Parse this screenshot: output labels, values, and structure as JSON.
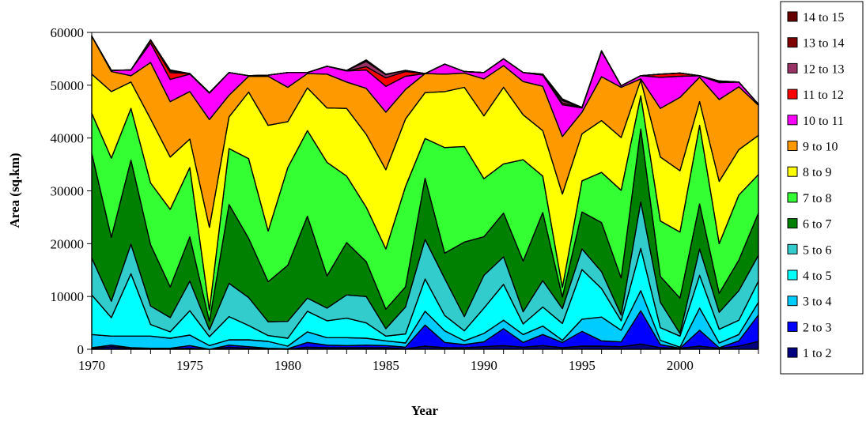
{
  "chart_data": {
    "type": "area",
    "stacked": true,
    "xlabel": "Year",
    "ylabel": "Area (sq.km)",
    "xlim": [
      1970,
      2004
    ],
    "ylim": [
      0,
      60000
    ],
    "x_ticks": [
      1970,
      1975,
      1980,
      1985,
      1990,
      1995,
      2000
    ],
    "y_ticks": [
      0,
      10000,
      20000,
      30000,
      40000,
      50000,
      60000
    ],
    "legend_position": "right",
    "grid": false,
    "years": [
      1970,
      1971,
      1972,
      1973,
      1974,
      1975,
      1976,
      1977,
      1978,
      1979,
      1980,
      1981,
      1982,
      1983,
      1984,
      1985,
      1986,
      1987,
      1988,
      1989,
      1990,
      1991,
      1992,
      1993,
      1994,
      1995,
      1996,
      1997,
      1998,
      1999,
      2000,
      2001,
      2002,
      2003,
      2004
    ],
    "series": [
      {
        "name": "1 to 2",
        "color": "#000080",
        "values": [
          200,
          500,
          200,
          100,
          100,
          200,
          0,
          400,
          200,
          100,
          0,
          400,
          300,
          300,
          300,
          300,
          100,
          600,
          300,
          300,
          500,
          700,
          400,
          700,
          300,
          600,
          600,
          500,
          1000,
          300,
          200,
          600,
          200,
          600,
          1500
        ]
      },
      {
        "name": "2 to 3",
        "color": "#0000ff",
        "values": [
          100,
          300,
          100,
          100,
          100,
          500,
          0,
          400,
          300,
          100,
          100,
          900,
          500,
          400,
          500,
          400,
          300,
          4000,
          1000,
          600,
          900,
          3200,
          900,
          2100,
          1000,
          2800,
          1000,
          900,
          6300,
          600,
          0,
          3000,
          100,
          1000,
          5000
        ]
      },
      {
        "name": "3 to 4",
        "color": "#00ccff",
        "values": [
          2500,
          1700,
          2200,
          2300,
          1900,
          2000,
          700,
          1000,
          1300,
          1300,
          500,
          2000,
          1400,
          1500,
          1300,
          900,
          800,
          2600,
          2200,
          700,
          1600,
          1600,
          1500,
          1600,
          400,
          2300,
          4500,
          2200,
          3800,
          800,
          200,
          4200,
          900,
          1200,
          2400
        ]
      },
      {
        "name": "4 to 5",
        "color": "#00ffff",
        "values": [
          7500,
          3500,
          11800,
          2200,
          1200,
          4600,
          1700,
          4400,
          2700,
          1100,
          1500,
          3900,
          3200,
          3700,
          2900,
          900,
          1700,
          6100,
          2900,
          1900,
          4800,
          6800,
          2000,
          3600,
          3200,
          9400,
          5400,
          1800,
          8000,
          2400,
          2100,
          6200,
          2600,
          2700,
          4000
        ]
      },
      {
        "name": "5 to 6",
        "color": "#33cccc",
        "values": [
          7000,
          3100,
          5600,
          3500,
          2700,
          5600,
          1300,
          6300,
          5300,
          2600,
          3200,
          2500,
          2400,
          4400,
          5000,
          1400,
          5100,
          7500,
          7000,
          2700,
          6200,
          5200,
          2300,
          5000,
          2800,
          3900,
          3200,
          1100,
          8800,
          4800,
          500,
          5000,
          3200,
          5600,
          4900
        ]
      },
      {
        "name": "6 to 7",
        "color": "#008000",
        "values": [
          19800,
          12100,
          15900,
          11600,
          5800,
          8400,
          1600,
          14900,
          11200,
          7600,
          10600,
          15500,
          6100,
          9900,
          6600,
          3700,
          3800,
          11600,
          4800,
          14100,
          7300,
          8300,
          9600,
          12900,
          2200,
          7000,
          9300,
          7000,
          13800,
          4900,
          6700,
          8500,
          3600,
          5800,
          8000
        ]
      },
      {
        "name": "7 to 8",
        "color": "#33ff33",
        "values": [
          7600,
          15000,
          9800,
          11700,
          14700,
          13100,
          2100,
          10600,
          15100,
          9600,
          18500,
          16200,
          21500,
          12600,
          10300,
          11400,
          19000,
          7500,
          20000,
          18100,
          11000,
          9300,
          19200,
          6900,
          1800,
          5900,
          9500,
          16600,
          6300,
          10500,
          12500,
          14900,
          9400,
          12300,
          7300
        ]
      },
      {
        "name": "8 to 9",
        "color": "#ffff00",
        "values": [
          7400,
          12600,
          5000,
          12100,
          9900,
          5400,
          15700,
          6000,
          12600,
          20000,
          8700,
          8100,
          10300,
          12800,
          13800,
          15000,
          12800,
          8700,
          10600,
          11200,
          11900,
          14500,
          8500,
          8600,
          17700,
          8900,
          9800,
          10000,
          3000,
          12100,
          11600,
          4500,
          11800,
          8600,
          7400
        ]
      },
      {
        "name": "9 to 10",
        "color": "#ff9900",
        "values": [
          7200,
          3800,
          1200,
          10700,
          10500,
          9000,
          20400,
          4100,
          3000,
          9300,
          6500,
          2700,
          6400,
          5000,
          8700,
          10900,
          5600,
          3600,
          3300,
          2700,
          7000,
          4100,
          6300,
          8400,
          10900,
          4100,
          8300,
          9500,
          200,
          9200,
          13900,
          4600,
          15500,
          11900,
          5700
        ]
      },
      {
        "name": "10 to 11",
        "color": "#ff00ff",
        "values": [
          0,
          200,
          1100,
          3700,
          4200,
          3300,
          5000,
          4300,
          100,
          200,
          2800,
          200,
          1500,
          2100,
          3500,
          4900,
          2500,
          0,
          1900,
          300,
          1200,
          1300,
          1700,
          2100,
          6000,
          800,
          4800,
          300,
          600,
          5900,
          4000,
          300,
          3200,
          900,
          200
        ]
      },
      {
        "name": "11 to 12",
        "color": "#ff0000",
        "values": [
          0,
          0,
          0,
          500,
          1300,
          100,
          100,
          0,
          0,
          0,
          0,
          0,
          0,
          0,
          600,
          1600,
          900,
          0,
          0,
          0,
          0,
          0,
          0,
          100,
          300,
          100,
          100,
          0,
          0,
          600,
          600,
          0,
          100,
          0,
          0
        ]
      },
      {
        "name": "12 to 13",
        "color": "#993366",
        "values": [
          0,
          0,
          0,
          100,
          300,
          0,
          0,
          0,
          0,
          0,
          0,
          0,
          0,
          100,
          1000,
          600,
          200,
          0,
          0,
          0,
          0,
          0,
          0,
          100,
          500,
          0,
          0,
          0,
          0,
          0,
          0,
          0,
          200,
          0,
          0
        ]
      },
      {
        "name": "13 to 14",
        "color": "#800000",
        "values": [
          0,
          0,
          0,
          0,
          100,
          0,
          0,
          0,
          0,
          0,
          0,
          0,
          0,
          0,
          200,
          100,
          0,
          0,
          0,
          0,
          0,
          0,
          0,
          0,
          200,
          0,
          0,
          0,
          0,
          0,
          0,
          0,
          0,
          0,
          0
        ]
      },
      {
        "name": "14 to 15",
        "color": "#660000",
        "values": [
          0,
          0,
          0,
          0,
          100,
          0,
          0,
          0,
          0,
          0,
          0,
          0,
          0,
          0,
          100,
          0,
          0,
          0,
          0,
          0,
          0,
          0,
          0,
          0,
          100,
          0,
          0,
          0,
          0,
          0,
          0,
          0,
          0,
          0,
          0
        ]
      }
    ]
  }
}
